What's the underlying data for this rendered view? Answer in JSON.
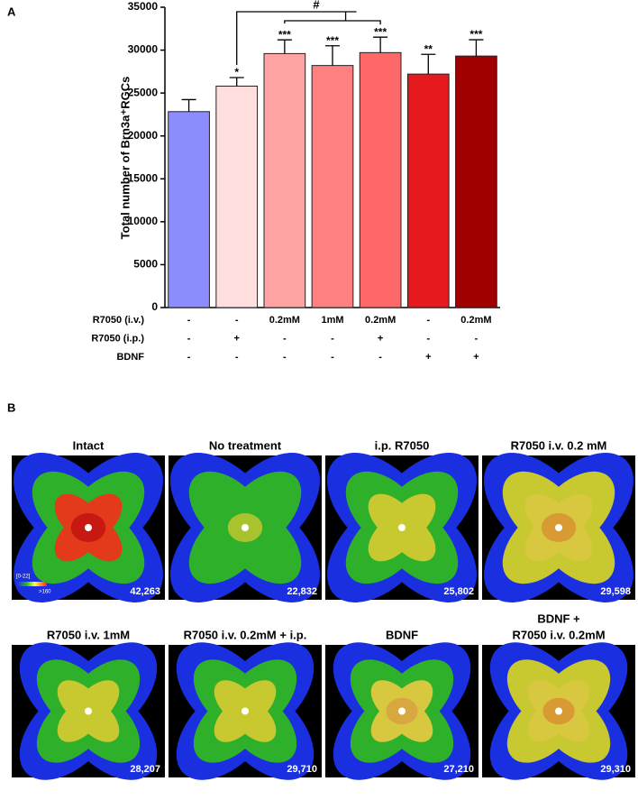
{
  "panel_a_label": "A",
  "panel_b_label": "B",
  "chart_data": {
    "type": "bar",
    "y_label": "Total number of Brn3a⁺RGCs",
    "categories": [
      null,
      null,
      null,
      null,
      null,
      null,
      null
    ],
    "values": [
      22832,
      25802,
      29598,
      28207,
      29710,
      27210,
      29310
    ],
    "errors": [
      1400,
      1000,
      1600,
      2300,
      1800,
      2300,
      1900
    ],
    "colors": [
      "#8c8cff",
      "#ffdede",
      "#ffa3a3",
      "#ff8080",
      "#ff6868",
      "#e61a1e",
      "#a00000"
    ],
    "significance": [
      null,
      "*",
      "***",
      "***",
      "***",
      "**",
      "***"
    ],
    "comparison_label": "#",
    "ylim": [
      0,
      35000
    ],
    "yticks": [
      0,
      5000,
      10000,
      15000,
      20000,
      25000,
      30000,
      35000
    ],
    "treatments": [
      {
        "label": "R7050 (i.v.)",
        "values": [
          "-",
          "-",
          "0.2mM",
          "1mM",
          "0.2mM",
          "-",
          "0.2mM"
        ]
      },
      {
        "label": "R7050 (i.p.)",
        "values": [
          "-",
          "+",
          "-",
          "-",
          "+",
          "-",
          "-"
        ]
      },
      {
        "label": "BDNF",
        "values": [
          "-",
          "-",
          "-",
          "-",
          "-",
          "+",
          "+"
        ]
      }
    ]
  },
  "panel_b": {
    "scale_min": "[0-22]",
    "scale_max": ">160",
    "images": [
      {
        "title": [
          "Intact"
        ],
        "count": "42,263"
      },
      {
        "title": [
          "No treatment"
        ],
        "count": "22,832"
      },
      {
        "title": [
          "i.p. R7050"
        ],
        "count": "25,802"
      },
      {
        "title": [
          "R7050 i.v. 0.2 mM"
        ],
        "count": "29,598"
      },
      {
        "title": [
          "R7050 i.v. 1mM"
        ],
        "count": "28,207"
      },
      {
        "title": [
          "R7050 i.v. 0.2mM + i.p."
        ],
        "count": "29,710"
      },
      {
        "title": [
          "BDNF"
        ],
        "count": "27,210"
      },
      {
        "title": [
          "BDNF +",
          "R7050 i.v. 0.2mM"
        ],
        "count": "29,310"
      }
    ]
  }
}
